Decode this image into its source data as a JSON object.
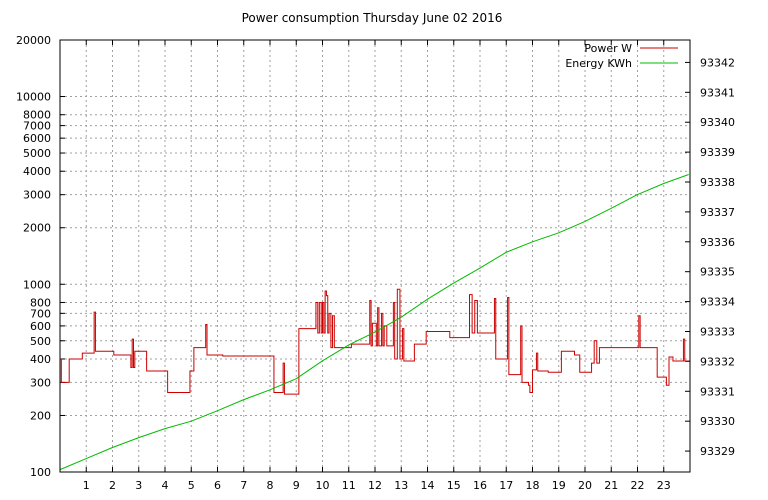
{
  "chart_data": {
    "type": "line",
    "title": "Power consumption Thursday June 02 2016",
    "x_ticks": [
      1,
      2,
      3,
      4,
      5,
      6,
      7,
      8,
      9,
      10,
      11,
      12,
      13,
      14,
      15,
      16,
      17,
      18,
      19,
      20,
      21,
      22,
      23
    ],
    "xlim": [
      0,
      24
    ],
    "y_left": {
      "scale": "log",
      "lim": [
        100,
        20000
      ],
      "ticks": [
        100,
        200,
        300,
        400,
        500,
        600,
        700,
        800,
        1000,
        2000,
        3000,
        4000,
        5000,
        6000,
        7000,
        8000,
        10000,
        20000
      ]
    },
    "y_right": {
      "scale": "linear",
      "lim": [
        93328.3,
        93342.75
      ],
      "ticks": [
        93329,
        93330,
        93331,
        93332,
        93333,
        93334,
        93335,
        93336,
        93337,
        93338,
        93339,
        93340,
        93341,
        93342
      ]
    },
    "grid": true,
    "legend_position": "top-right",
    "series": [
      {
        "name": "Power W",
        "axis": "left",
        "color": "#cc0000",
        "step": true,
        "points": [
          [
            0,
            400
          ],
          [
            0.05,
            300
          ],
          [
            0.35,
            400
          ],
          [
            0.85,
            430
          ],
          [
            1.3,
            710
          ],
          [
            1.35,
            440
          ],
          [
            2.05,
            420
          ],
          [
            2.7,
            360
          ],
          [
            2.75,
            510
          ],
          [
            2.8,
            360
          ],
          [
            2.85,
            440
          ],
          [
            3.3,
            345
          ],
          [
            4.05,
            345
          ],
          [
            4.1,
            265
          ],
          [
            4.3,
            265
          ],
          [
            4.9,
            265
          ],
          [
            4.95,
            345
          ],
          [
            5.1,
            460
          ],
          [
            5.55,
            610
          ],
          [
            5.6,
            420
          ],
          [
            6.2,
            415
          ],
          [
            7.6,
            415
          ],
          [
            7.65,
            415
          ],
          [
            8.1,
            415
          ],
          [
            8.15,
            265
          ],
          [
            8.4,
            265
          ],
          [
            8.5,
            380
          ],
          [
            8.55,
            260
          ],
          [
            9.0,
            260
          ],
          [
            9.1,
            580
          ],
          [
            9.7,
            580
          ],
          [
            9.75,
            800
          ],
          [
            9.82,
            550
          ],
          [
            9.88,
            800
          ],
          [
            9.95,
            550
          ],
          [
            10.0,
            800
          ],
          [
            10.05,
            550
          ],
          [
            10.1,
            920
          ],
          [
            10.15,
            870
          ],
          [
            10.2,
            550
          ],
          [
            10.25,
            700
          ],
          [
            10.32,
            460
          ],
          [
            10.38,
            680
          ],
          [
            10.45,
            460
          ],
          [
            11.0,
            460
          ],
          [
            11.1,
            480
          ],
          [
            11.7,
            480
          ],
          [
            11.8,
            820
          ],
          [
            11.85,
            470
          ],
          [
            11.9,
            620
          ],
          [
            12.05,
            470
          ],
          [
            12.1,
            750
          ],
          [
            12.15,
            470
          ],
          [
            12.25,
            700
          ],
          [
            12.3,
            470
          ],
          [
            12.35,
            600
          ],
          [
            12.45,
            470
          ],
          [
            12.65,
            470
          ],
          [
            12.7,
            800
          ],
          [
            12.75,
            400
          ],
          [
            12.85,
            940
          ],
          [
            12.95,
            400
          ],
          [
            13.05,
            580
          ],
          [
            13.1,
            390
          ],
          [
            13.4,
            390
          ],
          [
            13.5,
            480
          ],
          [
            13.85,
            480
          ],
          [
            13.95,
            560
          ],
          [
            14.8,
            560
          ],
          [
            14.85,
            520
          ],
          [
            15.5,
            520
          ],
          [
            15.6,
            880
          ],
          [
            15.7,
            550
          ],
          [
            15.8,
            820
          ],
          [
            15.9,
            550
          ],
          [
            16.45,
            550
          ],
          [
            16.55,
            840
          ],
          [
            16.6,
            400
          ],
          [
            16.95,
            400
          ],
          [
            17.0,
            400
          ],
          [
            17.05,
            850
          ],
          [
            17.1,
            330
          ],
          [
            17.5,
            330
          ],
          [
            17.55,
            600
          ],
          [
            17.6,
            300
          ],
          [
            17.75,
            300
          ],
          [
            17.85,
            290
          ],
          [
            17.9,
            265
          ],
          [
            18.0,
            350
          ],
          [
            18.15,
            430
          ],
          [
            18.2,
            345
          ],
          [
            18.4,
            345
          ],
          [
            18.6,
            340
          ],
          [
            19.0,
            340
          ],
          [
            19.1,
            440
          ],
          [
            19.6,
            420
          ],
          [
            19.75,
            420
          ],
          [
            19.8,
            340
          ],
          [
            20.15,
            340
          ],
          [
            20.25,
            380
          ],
          [
            20.35,
            500
          ],
          [
            20.45,
            380
          ],
          [
            20.55,
            460
          ],
          [
            21.9,
            460
          ],
          [
            22.05,
            680
          ],
          [
            22.1,
            460
          ],
          [
            22.65,
            460
          ],
          [
            22.75,
            320
          ],
          [
            23.05,
            320
          ],
          [
            23.1,
            290
          ],
          [
            23.2,
            410
          ],
          [
            23.35,
            390
          ],
          [
            23.7,
            390
          ],
          [
            23.75,
            510
          ],
          [
            23.8,
            390
          ],
          [
            24,
            390
          ]
        ]
      },
      {
        "name": "Energy KWh",
        "axis": "right",
        "color": "#00bb00",
        "step": false,
        "points": [
          [
            0,
            93328.38
          ],
          [
            1,
            93328.75
          ],
          [
            2,
            93329.12
          ],
          [
            3,
            93329.45
          ],
          [
            4,
            93329.75
          ],
          [
            5,
            93330.0
          ],
          [
            6,
            93330.35
          ],
          [
            7,
            93330.72
          ],
          [
            8,
            93331.05
          ],
          [
            9,
            93331.42
          ],
          [
            10,
            93332.02
          ],
          [
            11,
            93332.55
          ],
          [
            12,
            93332.98
          ],
          [
            13,
            93333.48
          ],
          [
            14,
            93334.08
          ],
          [
            15,
            93334.62
          ],
          [
            16,
            93335.12
          ],
          [
            17,
            93335.65
          ],
          [
            18,
            93336.0
          ],
          [
            19,
            93336.3
          ],
          [
            20,
            93336.68
          ],
          [
            21,
            93337.12
          ],
          [
            22,
            93337.58
          ],
          [
            23,
            93337.95
          ],
          [
            23.95,
            93338.25
          ]
        ]
      }
    ]
  }
}
